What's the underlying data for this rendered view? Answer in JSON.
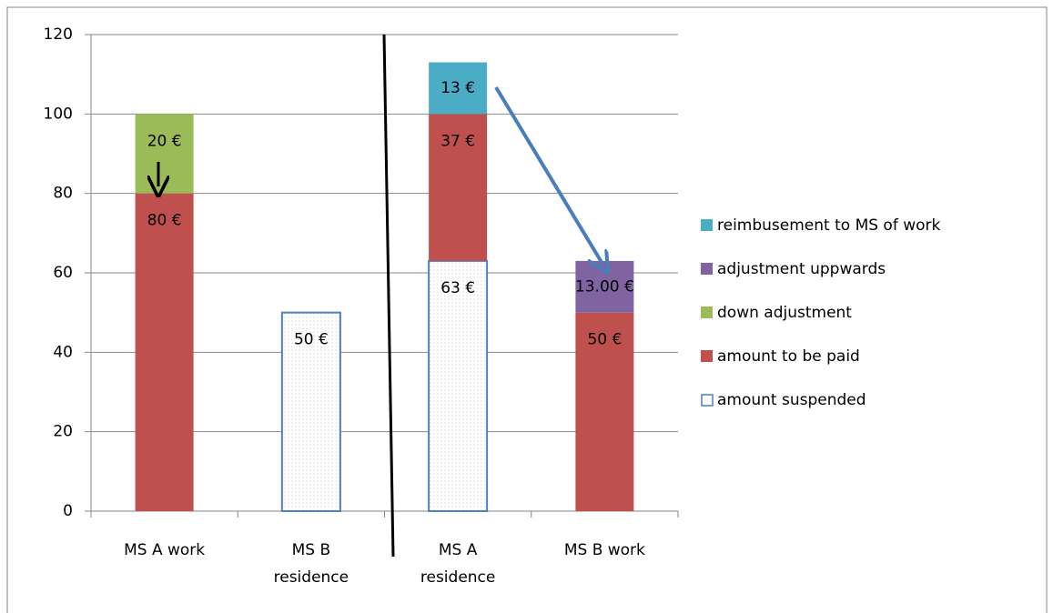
{
  "chart_data": {
    "type": "stacked_bar",
    "categories": [
      [
        "MS A work"
      ],
      [
        "MS B",
        "residence"
      ],
      [
        "MS A",
        "residence"
      ],
      [
        "MS B work"
      ]
    ],
    "series": [
      {
        "name": "amount suspended",
        "color": "#4f81bd",
        "hollow": true,
        "values": [
          null,
          50,
          63,
          null
        ],
        "value_labels": [
          null,
          "50 €",
          "63 €",
          null
        ]
      },
      {
        "name": "amount to be paid",
        "color": "#c0504d",
        "values": [
          80,
          null,
          37,
          50
        ],
        "value_labels": [
          "80 €",
          null,
          "37 €",
          "50 €"
        ]
      },
      {
        "name": " down adjustment",
        "color": "#9bbb59",
        "values": [
          20,
          null,
          null,
          null
        ],
        "value_labels": [
          "20 €",
          null,
          null,
          null
        ]
      },
      {
        "name": "adjustment uppwards",
        "color": "#8064a2",
        "values": [
          null,
          null,
          null,
          13
        ],
        "value_labels": [
          null,
          null,
          null,
          "13.00 €"
        ]
      },
      {
        "name": "reimbusement to MS of work",
        "color": "#4bacc6",
        "values": [
          null,
          null,
          13,
          null
        ],
        "value_labels": [
          null,
          null,
          "13 €",
          null
        ]
      }
    ],
    "ylim": [
      0,
      120
    ],
    "yticks": [
      0,
      20,
      40,
      60,
      80,
      100,
      120
    ],
    "grid": true,
    "legend": "right"
  }
}
